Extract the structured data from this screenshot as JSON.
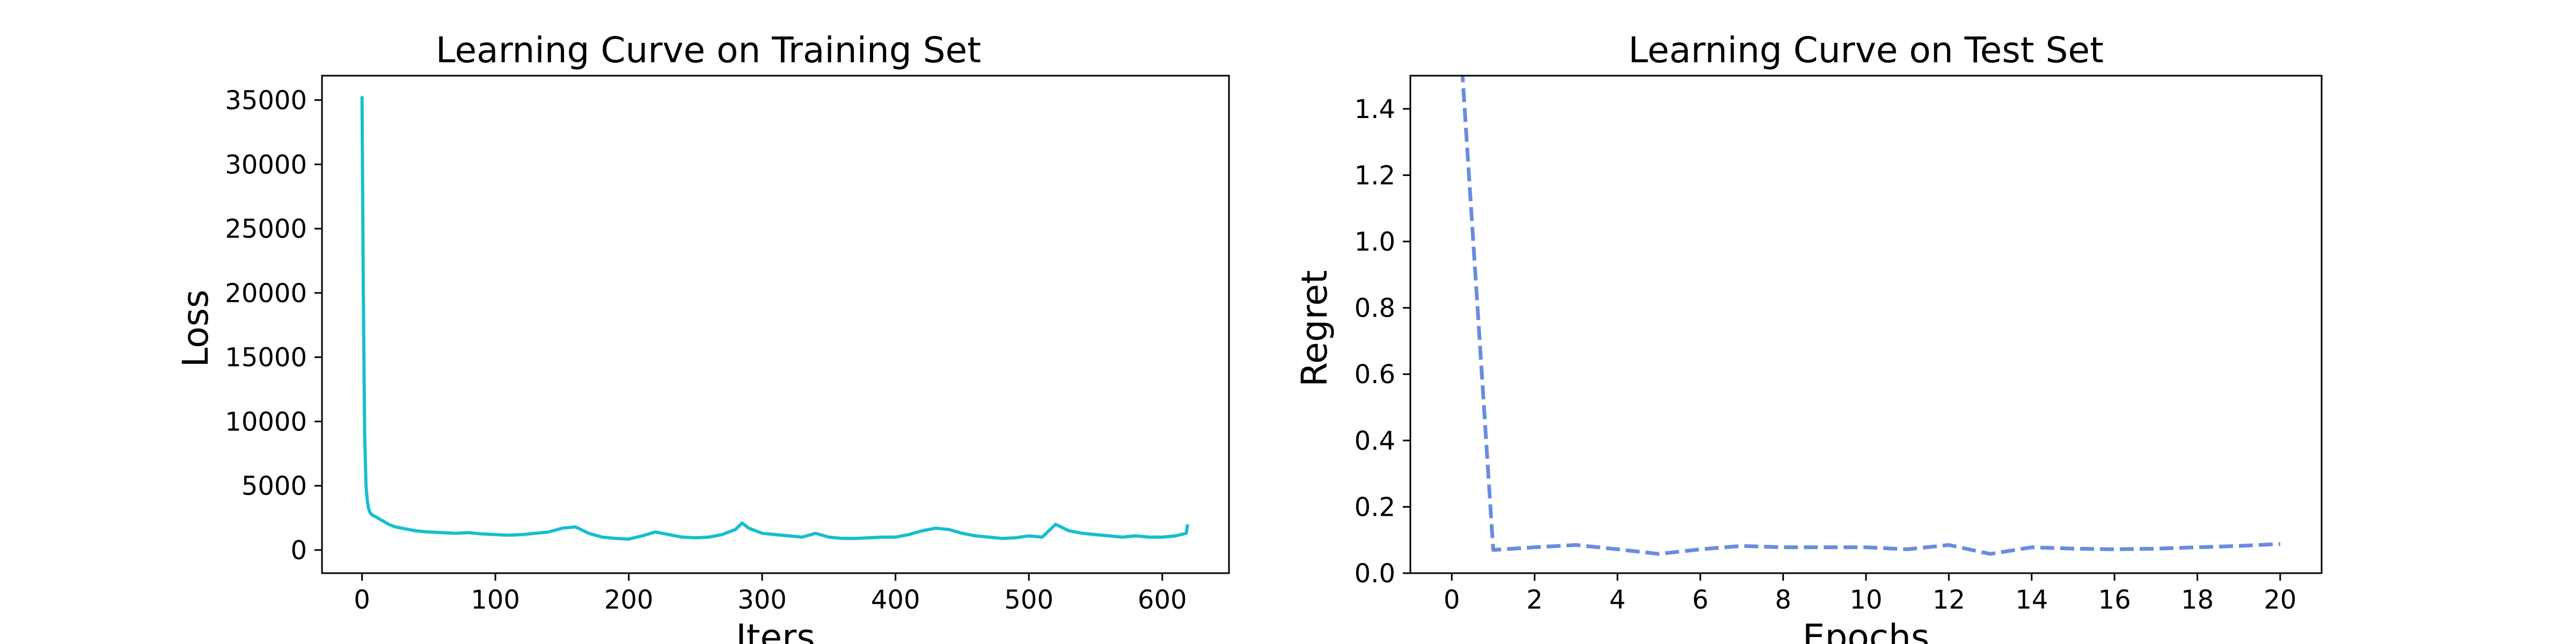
{
  "chart_data": [
    {
      "type": "line",
      "title": "Learning Curve on Training Set",
      "xlabel": "Iters",
      "ylabel": "Loss",
      "xlim": [
        -30,
        650
      ],
      "ylim": [
        -1800,
        36900
      ],
      "xticks": [
        0,
        100,
        200,
        300,
        400,
        500,
        600
      ],
      "yticks": [
        0,
        5000,
        10000,
        15000,
        20000,
        25000,
        30000,
        35000
      ],
      "grid": false,
      "line_style": "solid",
      "color": "#17becf",
      "series": [
        {
          "x": [
            0,
            1,
            2,
            3,
            4,
            5,
            6,
            8,
            10,
            15,
            20,
            25,
            30,
            40,
            50,
            60,
            70,
            80,
            90,
            100,
            110,
            120,
            130,
            140,
            150,
            160,
            170,
            180,
            190,
            200,
            210,
            220,
            230,
            240,
            250,
            260,
            270,
            280,
            285,
            290,
            300,
            310,
            320,
            330,
            340,
            350,
            360,
            370,
            380,
            390,
            400,
            410,
            420,
            430,
            440,
            450,
            460,
            470,
            480,
            490,
            500,
            510,
            520,
            530,
            540,
            550,
            560,
            570,
            580,
            590,
            600,
            610,
            618,
            619
          ],
          "y": [
            35300,
            20000,
            9000,
            5000,
            3800,
            3200,
            2900,
            2700,
            2600,
            2300,
            2000,
            1800,
            1700,
            1500,
            1400,
            1350,
            1300,
            1350,
            1250,
            1200,
            1150,
            1200,
            1300,
            1400,
            1700,
            1800,
            1300,
            1000,
            900,
            850,
            1100,
            1400,
            1200,
            1000,
            950,
            1000,
            1200,
            1600,
            2100,
            1700,
            1300,
            1200,
            1100,
            1000,
            1300,
            1000,
            900,
            900,
            950,
            1000,
            1000,
            1200,
            1500,
            1700,
            1600,
            1300,
            1100,
            1000,
            900,
            950,
            1100,
            1000,
            2000,
            1500,
            1300,
            1200,
            1100,
            1000,
            1100,
            1000,
            1000,
            1100,
            1300,
            2000
          ]
        }
      ]
    },
    {
      "type": "line",
      "title": "Learning Curve on Test Set",
      "xlabel": "Epochs",
      "ylabel": "Regret",
      "xlim": [
        -1.0,
        21.0
      ],
      "ylim": [
        0.0,
        1.5
      ],
      "xticks": [
        0,
        2,
        4,
        6,
        8,
        10,
        12,
        14,
        16,
        18,
        20
      ],
      "yticks": [
        0.0,
        0.2,
        0.4,
        0.6,
        0.8,
        1.0,
        1.2,
        1.4
      ],
      "grid": false,
      "line_style": "dashed",
      "color": "#6b8be0",
      "series": [
        {
          "x": [
            0,
            1,
            2,
            3,
            4,
            5,
            6,
            7,
            8,
            9,
            10,
            11,
            12,
            13,
            14,
            15,
            16,
            17,
            18,
            19,
            20
          ],
          "y": [
            2.0,
            0.07,
            0.078,
            0.085,
            0.072,
            0.058,
            0.072,
            0.082,
            0.078,
            0.078,
            0.078,
            0.072,
            0.085,
            0.058,
            0.078,
            0.074,
            0.072,
            0.074,
            0.078,
            0.082,
            0.088
          ]
        }
      ]
    }
  ]
}
